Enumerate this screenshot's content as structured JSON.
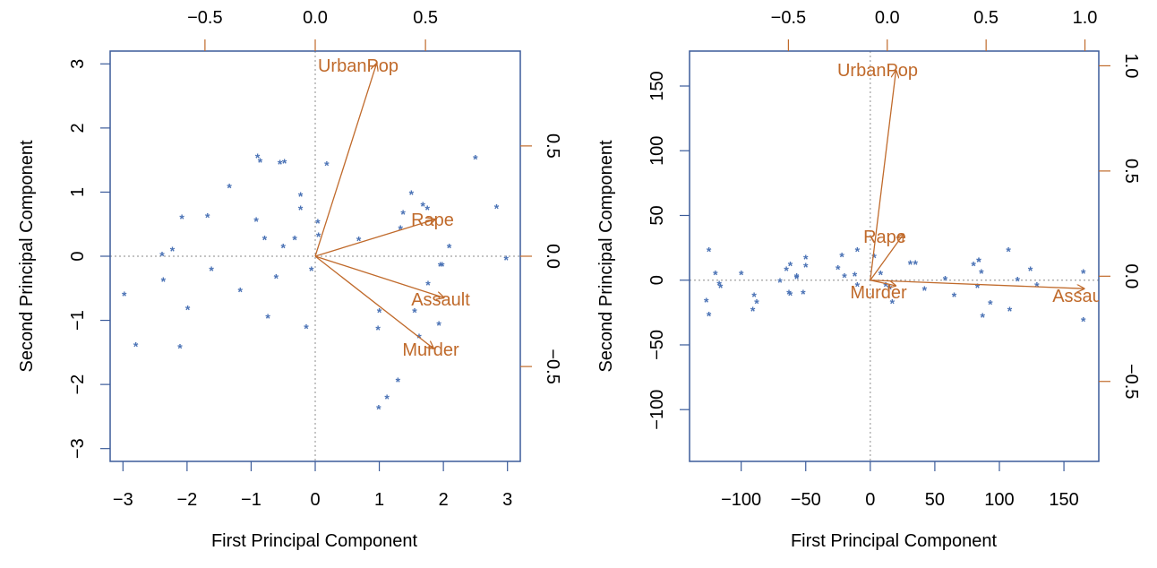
{
  "colors": {
    "frame": "#3b5b9a",
    "points": "#4a72b5",
    "loadings": "#c06a2b",
    "refline": "#a0a0a0",
    "text": "#000000"
  },
  "chart_data": [
    {
      "type": "biplot",
      "xlabel": "First Principal Component",
      "ylabel": "Second Principal Component",
      "xlim": [
        -3.2,
        3.2
      ],
      "ylim": [
        -3.2,
        3.2
      ],
      "x_ticks": [
        "−3",
        "−2",
        "−1",
        "0",
        "1",
        "2",
        "3"
      ],
      "x_tick_values": [
        -3,
        -2,
        -1,
        0,
        1,
        2,
        3
      ],
      "y_ticks": [
        "−3",
        "−2",
        "−1",
        "0",
        "1",
        "2",
        "3"
      ],
      "y_tick_values": [
        -3,
        -2,
        -1,
        0,
        1,
        2,
        3
      ],
      "loading_xlim": [
        -0.93,
        0.93
      ],
      "loading_ylim": [
        -0.93,
        0.93
      ],
      "top_ticks": [
        "−0.5",
        "0.0",
        "0.5"
      ],
      "top_tick_values": [
        -0.5,
        0,
        0.5
      ],
      "right_ticks": [
        "−0.5",
        "0.0",
        "0.5"
      ],
      "right_tick_values": [
        -0.5,
        0,
        0.5
      ],
      "point_marker": "*",
      "points": [
        [
          0.98,
          -1.13
        ],
        [
          1.93,
          -1.06
        ],
        [
          1.75,
          0.74
        ],
        [
          -0.14,
          -1.11
        ],
        [
          2.5,
          1.53
        ],
        [
          1.5,
          0.98
        ],
        [
          -1.34,
          1.08
        ],
        [
          0.05,
          0.32
        ],
        [
          2.98,
          -0.04
        ],
        [
          1.62,
          -1.26
        ],
        [
          -0.9,
          1.55
        ],
        [
          -1.62,
          -0.21
        ],
        [
          1.37,
          0.67
        ],
        [
          -0.5,
          0.15
        ],
        [
          -2.23,
          0.1
        ],
        [
          -0.79,
          0.27
        ],
        [
          -0.74,
          -0.95
        ],
        [
          1.55,
          -0.86
        ],
        [
          -2.37,
          -0.38
        ],
        [
          1.76,
          -0.43
        ],
        [
          -0.48,
          1.47
        ],
        [
          2.09,
          0.15
        ],
        [
          -1.68,
          0.62
        ],
        [
          0.99,
          -2.37
        ],
        [
          0.68,
          0.26
        ],
        [
          -1.17,
          -0.54
        ],
        [
          -0.92,
          0.56
        ],
        [
          2.83,
          0.76
        ],
        [
          -2.39,
          0.02
        ],
        [
          0.18,
          1.43
        ],
        [
          1.98,
          -0.14
        ],
        [
          1.68,
          0.8
        ],
        [
          1.12,
          -2.21
        ],
        [
          -2.98,
          -0.6
        ],
        [
          -0.23,
          0.74
        ],
        [
          -0.06,
          -0.21
        ],
        [
          -0.55,
          1.45
        ],
        [
          -0.23,
          0.95
        ],
        [
          -2.08,
          0.6
        ],
        [
          1.29,
          -1.94
        ],
        [
          -2.8,
          -1.39
        ],
        [
          -1.99,
          -0.82
        ],
        [
          -2.11,
          -1.42
        ],
        [
          1.33,
          0.43
        ],
        [
          -0.32,
          0.27
        ],
        [
          -0.86,
          1.48
        ],
        [
          -0.61,
          -0.33
        ],
        [
          0.04,
          0.53
        ],
        [
          1.0,
          -0.86
        ],
        [
          1.95,
          -0.14
        ]
      ],
      "loadings": [
        {
          "name": "UrbanPop",
          "x": 0.278,
          "y": 0.873
        },
        {
          "name": "Rape",
          "x": 0.543,
          "y": 0.167
        },
        {
          "name": "Assault",
          "x": 0.583,
          "y": -0.188
        },
        {
          "name": "Murder",
          "x": 0.536,
          "y": -0.418
        }
      ]
    },
    {
      "type": "biplot",
      "xlabel": "First Principal Component",
      "ylabel": "Second Principal Component",
      "xlim": [
        -140,
        177
      ],
      "ylim": [
        -140,
        177
      ],
      "x_ticks": [
        "−100",
        "−50",
        "0",
        "50",
        "100",
        "150"
      ],
      "x_tick_values": [
        -100,
        -50,
        0,
        50,
        100,
        150
      ],
      "y_ticks": [
        "−100",
        "−50",
        "0",
        "50",
        "100",
        "150"
      ],
      "y_tick_values": [
        -100,
        -50,
        0,
        50,
        100,
        150
      ],
      "loading_xlim": [
        -1.0,
        1.07
      ],
      "loading_ylim": [
        -0.88,
        1.07
      ],
      "top_ticks": [
        "−0.5",
        "0.0",
        "0.5",
        "1.0"
      ],
      "top_tick_values": [
        -0.5,
        0,
        0.5,
        1.0
      ],
      "right_ticks": [
        "−0.5",
        "0.0",
        "0.5",
        "1.0"
      ],
      "right_tick_values": [
        -0.5,
        0,
        0.5,
        1.0
      ],
      "point_marker": "*",
      "points": [
        [
          -125,
          23
        ],
        [
          -127,
          -16
        ],
        [
          -120,
          5
        ],
        [
          -117,
          -3
        ],
        [
          -116,
          -5
        ],
        [
          -100,
          5
        ],
        [
          -90,
          -12
        ],
        [
          -88,
          -17
        ],
        [
          -91,
          -23
        ],
        [
          -125,
          -27
        ],
        [
          -70,
          -1
        ],
        [
          -65,
          8
        ],
        [
          -62,
          12
        ],
        [
          -57,
          2
        ],
        [
          -57,
          3
        ],
        [
          -50,
          17
        ],
        [
          -50,
          11
        ],
        [
          -52,
          -10
        ],
        [
          -63,
          -10
        ],
        [
          -62,
          -11
        ],
        [
          -25,
          9
        ],
        [
          -22,
          19
        ],
        [
          -12,
          4
        ],
        [
          -10,
          23
        ],
        [
          -20,
          3
        ],
        [
          -10,
          -4
        ],
        [
          3,
          18
        ],
        [
          8,
          5
        ],
        [
          17,
          -17
        ],
        [
          31,
          13
        ],
        [
          35,
          13
        ],
        [
          42,
          -7
        ],
        [
          58,
          1
        ],
        [
          65,
          -12
        ],
        [
          80,
          12
        ],
        [
          83,
          -5
        ],
        [
          84,
          15
        ],
        [
          87,
          -28
        ],
        [
          84,
          15
        ],
        [
          86,
          6
        ],
        [
          93,
          -18
        ],
        [
          107,
          23
        ],
        [
          108,
          -23
        ],
        [
          114,
          0
        ],
        [
          124,
          8
        ],
        [
          129,
          -4
        ],
        [
          165,
          6
        ],
        [
          165,
          -31
        ],
        [
          15,
          -6
        ],
        [
          12,
          -4
        ]
      ],
      "loadings": [
        {
          "name": "UrbanPop",
          "x": 0.044,
          "y": 0.977
        },
        {
          "name": "Rape",
          "x": 0.082,
          "y": 0.2
        },
        {
          "name": "Assault",
          "x": 0.995,
          "y": -0.059
        },
        {
          "name": "Murder",
          "x": 0.042,
          "y": -0.045
        }
      ]
    }
  ]
}
